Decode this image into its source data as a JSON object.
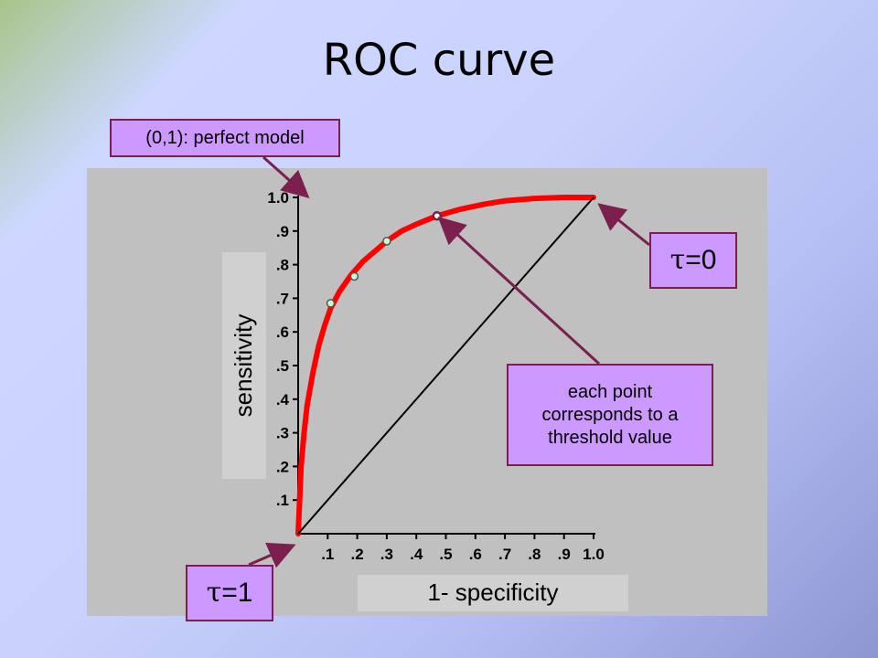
{
  "slide": {
    "title": "ROC curve"
  },
  "callouts": {
    "perfect_model": "(0,1): perfect model",
    "tau0": {
      "symbol": "τ",
      "text": "=0"
    },
    "tau1": {
      "symbol": "τ",
      "text": "=1"
    },
    "threshold_note": "each point corresponds to a threshold value"
  },
  "colors": {
    "curve": "#ff0000",
    "diagonal": "#000000",
    "callout_fill": "#cc99ff",
    "callout_border": "#7a1f4e",
    "panel": "#c0c0c0"
  },
  "chart_data": {
    "type": "line",
    "title": "",
    "xlabel": "1- specificity",
    "ylabel": "sensitivity",
    "xlim": [
      0,
      1.0
    ],
    "ylim": [
      0,
      1.0
    ],
    "xticks": [
      ".1",
      ".2",
      ".3",
      ".4",
      ".5",
      ".6",
      ".7",
      ".8",
      ".9",
      "1.0"
    ],
    "yticks": [
      ".1",
      ".2",
      ".3",
      ".4",
      ".5",
      ".6",
      ".7",
      ".8",
      ".9",
      "1.0"
    ],
    "grid": false,
    "series": [
      {
        "name": "",
        "color": "#ff0000",
        "x": [
          0,
          0.005,
          0.01,
          0.02,
          0.03,
          0.05,
          0.07,
          0.09,
          0.11,
          0.14,
          0.18,
          0.22,
          0.26,
          0.3,
          0.35,
          0.4,
          0.47,
          0.55,
          0.63,
          0.7,
          0.8,
          0.9,
          1.0
        ],
        "y": [
          0,
          0.1,
          0.2,
          0.3,
          0.38,
          0.48,
          0.56,
          0.62,
          0.67,
          0.72,
          0.77,
          0.81,
          0.84,
          0.87,
          0.9,
          0.92,
          0.945,
          0.965,
          0.98,
          0.99,
          0.997,
          1.0,
          1.0
        ]
      },
      {
        "name": "",
        "color": "#000000",
        "x": [
          0,
          1.0
        ],
        "y": [
          0,
          1.0
        ]
      }
    ],
    "points": [
      {
        "x": 0.11,
        "y": 0.685
      },
      {
        "x": 0.19,
        "y": 0.765
      },
      {
        "x": 0.3,
        "y": 0.87
      },
      {
        "x": 0.47,
        "y": 0.945
      }
    ]
  }
}
